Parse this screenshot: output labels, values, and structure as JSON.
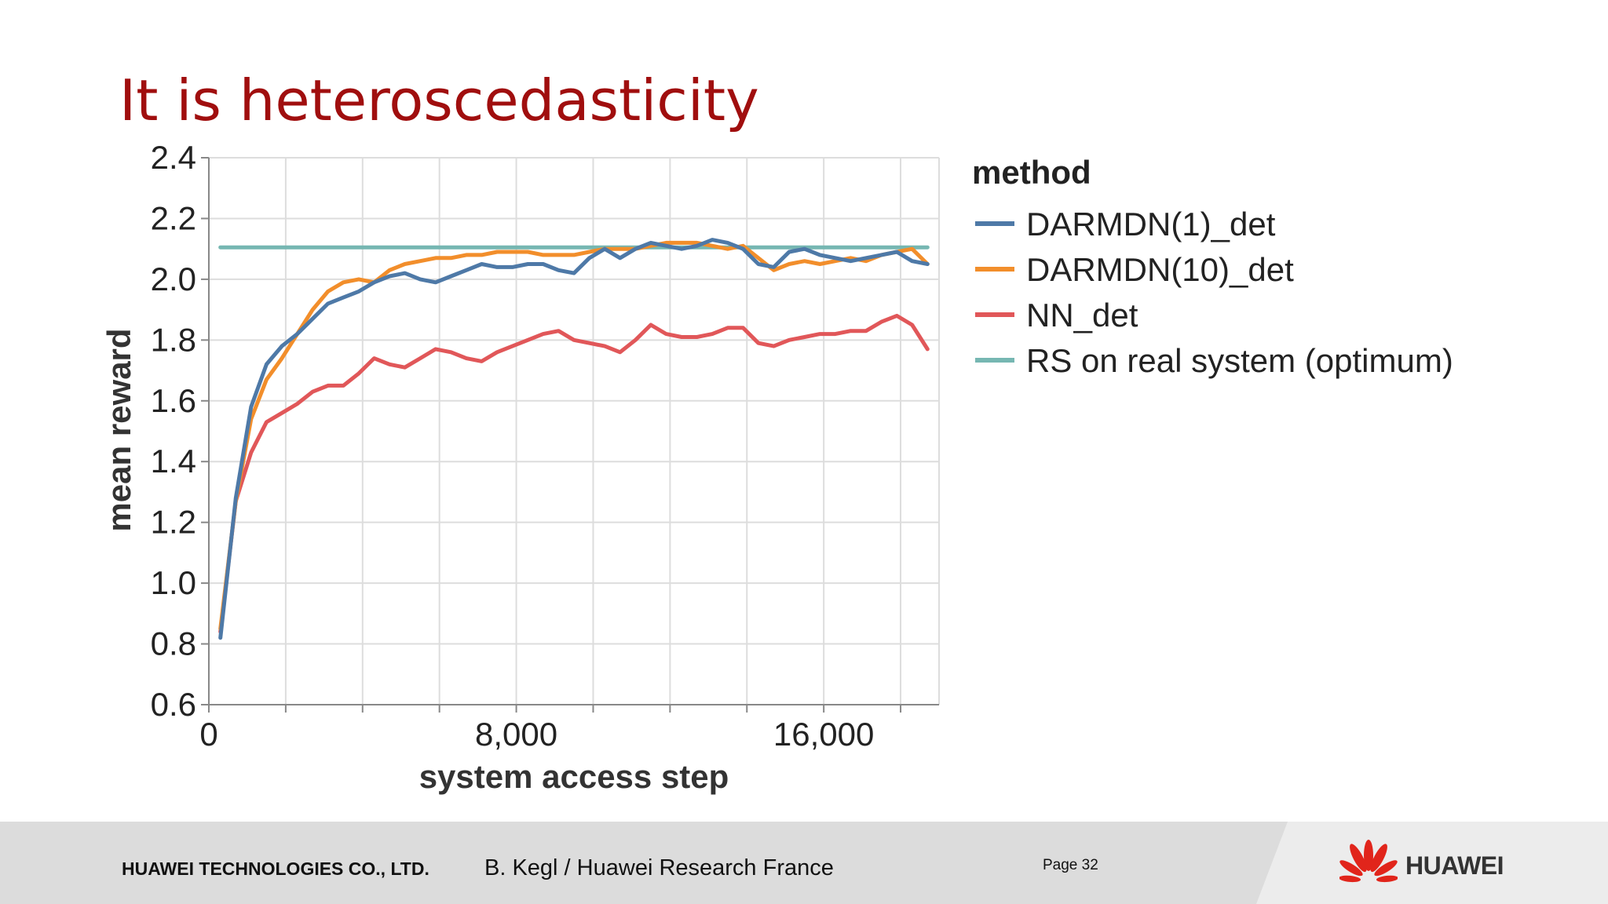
{
  "slide": {
    "title": "It is heteroscedasticity"
  },
  "footer": {
    "company": "HUAWEI TECHNOLOGIES CO., LTD.",
    "author": "B. Kegl / Huawei Research France",
    "page": "Page 32",
    "logo_text": "HUAWEI",
    "logo_icon": "huawei-flower-icon"
  },
  "chart_data": {
    "type": "line",
    "xlabel": "system access step",
    "ylabel": "mean reward",
    "xlim": [
      0,
      19000
    ],
    "ylim": [
      0.6,
      2.4
    ],
    "x_ticks": [
      0,
      8000,
      16000
    ],
    "x_tick_labels": [
      "0",
      "8,000",
      "16,000"
    ],
    "y_ticks": [
      0.6,
      0.8,
      1.0,
      1.2,
      1.4,
      1.6,
      1.8,
      2.0,
      2.2,
      2.4
    ],
    "y_tick_labels": [
      "0.6",
      "0.8",
      "1.0",
      "1.2",
      "1.4",
      "1.6",
      "1.8",
      "2.0",
      "2.2",
      "2.4"
    ],
    "grid": true,
    "legend_title": "method",
    "legend_position": "right",
    "x": [
      300,
      700,
      1100,
      1500,
      1900,
      2300,
      2700,
      3100,
      3500,
      3900,
      4300,
      4700,
      5100,
      5500,
      5900,
      6300,
      6700,
      7100,
      7500,
      7900,
      8300,
      8700,
      9100,
      9500,
      9900,
      10300,
      10700,
      11100,
      11500,
      11900,
      12300,
      12700,
      13100,
      13500,
      13900,
      14300,
      14700,
      15100,
      15500,
      15900,
      16300,
      16700,
      17100,
      17500,
      17900,
      18300,
      18700
    ],
    "series": [
      {
        "name": "DARMDN(1)_det",
        "color": "#4e79a7",
        "values": [
          0.82,
          1.28,
          1.58,
          1.72,
          1.78,
          1.82,
          1.87,
          1.92,
          1.94,
          1.96,
          1.99,
          2.01,
          2.02,
          2.0,
          1.99,
          2.01,
          2.03,
          2.05,
          2.04,
          2.04,
          2.05,
          2.05,
          2.03,
          2.02,
          2.07,
          2.1,
          2.07,
          2.1,
          2.12,
          2.11,
          2.1,
          2.11,
          2.13,
          2.12,
          2.1,
          2.05,
          2.04,
          2.09,
          2.1,
          2.08,
          2.07,
          2.06,
          2.07,
          2.08,
          2.09,
          2.06,
          2.05
        ]
      },
      {
        "name": "DARMDN(10)_det",
        "color": "#f28e2b",
        "values": [
          0.85,
          1.27,
          1.54,
          1.67,
          1.74,
          1.82,
          1.9,
          1.96,
          1.99,
          2.0,
          1.99,
          2.03,
          2.05,
          2.06,
          2.07,
          2.07,
          2.08,
          2.08,
          2.09,
          2.09,
          2.09,
          2.08,
          2.08,
          2.08,
          2.09,
          2.1,
          2.1,
          2.1,
          2.11,
          2.12,
          2.12,
          2.12,
          2.11,
          2.1,
          2.11,
          2.07,
          2.03,
          2.05,
          2.06,
          2.05,
          2.06,
          2.07,
          2.06,
          2.08,
          2.09,
          2.1,
          2.05
        ]
      },
      {
        "name": "NN_det",
        "color": "#e15759",
        "values": [
          0.84,
          1.27,
          1.43,
          1.53,
          1.56,
          1.59,
          1.63,
          1.65,
          1.65,
          1.69,
          1.74,
          1.72,
          1.71,
          1.74,
          1.77,
          1.76,
          1.74,
          1.73,
          1.76,
          1.78,
          1.8,
          1.82,
          1.83,
          1.8,
          1.79,
          1.78,
          1.76,
          1.8,
          1.85,
          1.82,
          1.81,
          1.81,
          1.82,
          1.84,
          1.84,
          1.79,
          1.78,
          1.8,
          1.81,
          1.82,
          1.82,
          1.83,
          1.83,
          1.86,
          1.88,
          1.85,
          1.77
        ]
      },
      {
        "name": "RS on real system (optimum)",
        "color": "#76b7b2",
        "values": [
          2.105,
          2.105,
          2.105,
          2.105,
          2.105,
          2.105,
          2.105,
          2.105,
          2.105,
          2.105,
          2.105,
          2.105,
          2.105,
          2.105,
          2.105,
          2.105,
          2.105,
          2.105,
          2.105,
          2.105,
          2.105,
          2.105,
          2.105,
          2.105,
          2.105,
          2.105,
          2.105,
          2.105,
          2.105,
          2.105,
          2.105,
          2.105,
          2.105,
          2.105,
          2.105,
          2.105,
          2.105,
          2.105,
          2.105,
          2.105,
          2.105,
          2.105,
          2.105,
          2.105,
          2.105,
          2.105,
          2.105
        ]
      }
    ]
  }
}
